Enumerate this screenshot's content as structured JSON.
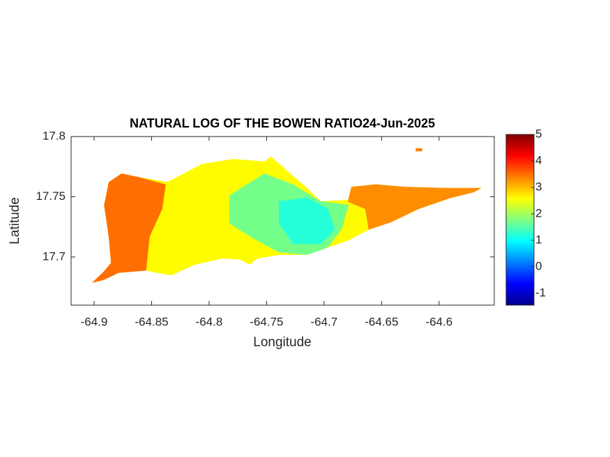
{
  "chart_data": {
    "type": "heatmap",
    "title": "NATURAL LOG OF THE BOWEN RATIO24-Jun-2025",
    "x_label": "Longitude",
    "y_label": "Latitude",
    "xlim": [
      -64.92,
      -64.552
    ],
    "ylim": [
      17.66,
      17.8
    ],
    "xticks": [
      -64.9,
      -64.85,
      -64.8,
      -64.75,
      -64.7,
      -64.65,
      -64.6
    ],
    "yticks": [
      17.7,
      17.75,
      17.8
    ],
    "colormap": "jet",
    "clim": [
      -1.45,
      5
    ],
    "colorbar_ticks": [
      -1,
      0,
      1,
      2,
      3,
      4,
      5
    ],
    "regions": [
      {
        "value": 2.6,
        "lon": [
          -64.901,
          -64.892,
          -64.885,
          -64.887,
          -64.891,
          -64.887,
          -64.876,
          -64.861,
          -64.836,
          -64.806,
          -64.779,
          -64.752,
          -64.746,
          -64.733,
          -64.715,
          -64.703,
          -64.679,
          -64.676,
          -64.655,
          -64.63,
          -64.594,
          -64.564,
          -64.57,
          -64.591,
          -64.618,
          -64.642,
          -64.661,
          -64.679,
          -64.697,
          -64.715,
          -64.739,
          -64.758,
          -64.765,
          -64.773,
          -64.788,
          -64.812,
          -64.833,
          -64.839,
          -64.855,
          -64.879,
          -64.892
        ],
        "lat": [
          17.679,
          17.687,
          17.695,
          17.717,
          17.743,
          17.762,
          17.769,
          17.766,
          17.762,
          17.777,
          17.781,
          17.779,
          17.783,
          17.772,
          17.757,
          17.746,
          17.747,
          17.758,
          17.76,
          17.758,
          17.757,
          17.757,
          17.754,
          17.749,
          17.74,
          17.729,
          17.723,
          17.714,
          17.708,
          17.702,
          17.702,
          17.699,
          17.694,
          17.698,
          17.699,
          17.694,
          17.685,
          17.686,
          17.689,
          17.687,
          17.681
        ]
      },
      {
        "value": 3.5,
        "lon": [
          -64.901,
          -64.892,
          -64.885,
          -64.887,
          -64.891,
          -64.887,
          -64.876,
          -64.861,
          -64.838,
          -64.841,
          -64.852,
          -64.855,
          -64.879,
          -64.892
        ],
        "lat": [
          17.679,
          17.687,
          17.695,
          17.717,
          17.743,
          17.762,
          17.769,
          17.766,
          17.76,
          17.74,
          17.717,
          17.689,
          17.687,
          17.681
        ]
      },
      {
        "value": 3.3,
        "lon": [
          -64.676,
          -64.655,
          -64.63,
          -64.594,
          -64.564,
          -64.57,
          -64.591,
          -64.618,
          -64.642,
          -64.661,
          -64.664,
          -64.679
        ],
        "lat": [
          17.758,
          17.76,
          17.758,
          17.757,
          17.757,
          17.754,
          17.749,
          17.74,
          17.729,
          17.723,
          17.74,
          17.746
        ]
      },
      {
        "value": 1.7,
        "lon": [
          -64.782,
          -64.752,
          -64.727,
          -64.703,
          -64.679,
          -64.685,
          -64.697,
          -64.715,
          -64.739,
          -64.764,
          -64.782
        ],
        "lat": [
          17.751,
          17.769,
          17.76,
          17.746,
          17.743,
          17.723,
          17.708,
          17.702,
          17.704,
          17.717,
          17.728
        ]
      },
      {
        "value": 1.2,
        "lon": [
          -64.739,
          -64.715,
          -64.697,
          -64.691,
          -64.703,
          -64.727,
          -64.739
        ],
        "lat": [
          17.746,
          17.749,
          17.74,
          17.723,
          17.711,
          17.711,
          17.728
        ]
      },
      {
        "value": 3.4,
        "lon": [
          -64.62,
          -64.615,
          -64.615,
          -64.62
        ],
        "lat": [
          17.79,
          17.79,
          17.788,
          17.788
        ]
      }
    ]
  }
}
